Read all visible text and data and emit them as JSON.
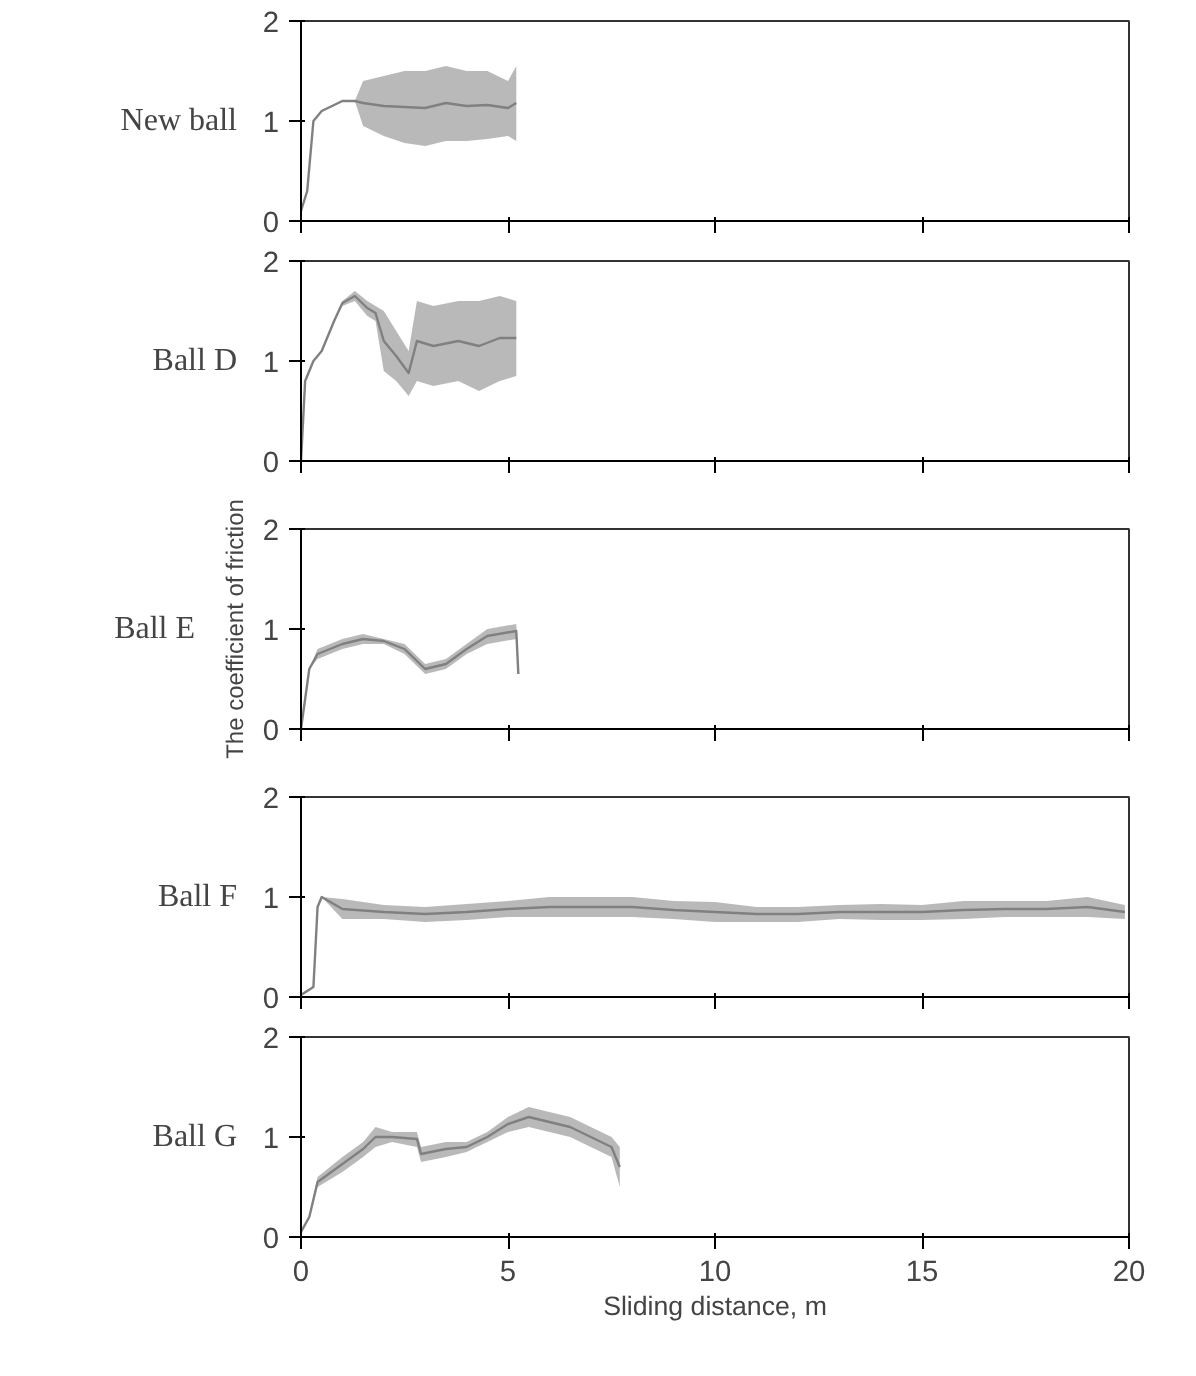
{
  "chart_data": [
    {
      "type": "line",
      "title": "New ball",
      "xlim": [
        0,
        20
      ],
      "xticks": [
        0,
        5,
        10,
        15,
        20
      ],
      "ylim": [
        0,
        2
      ],
      "yticks": [
        0,
        1,
        2
      ],
      "tick_labels": "y",
      "series": [
        {
          "color": "#808080",
          "x": [
            0,
            0.15,
            0.3,
            0.5,
            1.0,
            1.3,
            1.5,
            2.0,
            2.5,
            3.0,
            3.5,
            4.0,
            4.5,
            5.0,
            5.2
          ],
          "values": [
            0.1,
            0.3,
            1.0,
            1.1,
            1.2,
            1.2,
            1.18,
            1.15,
            1.14,
            1.13,
            1.18,
            1.15,
            1.16,
            1.13,
            1.18
          ],
          "lower": [
            0.1,
            0.3,
            1.0,
            1.1,
            1.2,
            1.2,
            0.95,
            0.85,
            0.78,
            0.75,
            0.8,
            0.8,
            0.82,
            0.85,
            0.8
          ],
          "upper": [
            0.1,
            0.3,
            1.0,
            1.1,
            1.2,
            1.2,
            1.4,
            1.45,
            1.5,
            1.5,
            1.55,
            1.5,
            1.5,
            1.4,
            1.55
          ]
        }
      ]
    },
    {
      "type": "line",
      "title": "Ball D",
      "xlim": [
        0,
        20
      ],
      "xticks": [
        0,
        5,
        10,
        15,
        20
      ],
      "ylim": [
        0,
        2
      ],
      "yticks": [
        0,
        1,
        2
      ],
      "tick_labels": "y",
      "series": [
        {
          "color": "#808080",
          "x": [
            0,
            0.1,
            0.3,
            0.5,
            0.8,
            1.0,
            1.3,
            1.6,
            1.8,
            2.0,
            2.3,
            2.6,
            2.8,
            3.2,
            3.8,
            4.3,
            4.8,
            5.2
          ],
          "values": [
            0,
            0.8,
            1.0,
            1.1,
            1.4,
            1.58,
            1.65,
            1.53,
            1.48,
            1.2,
            1.05,
            0.88,
            1.2,
            1.15,
            1.2,
            1.15,
            1.23,
            1.23
          ],
          "lower": [
            0,
            0.8,
            1.0,
            1.1,
            1.4,
            1.55,
            1.6,
            1.45,
            1.4,
            0.9,
            0.8,
            0.65,
            0.8,
            0.75,
            0.8,
            0.7,
            0.8,
            0.85
          ],
          "upper": [
            0,
            0.8,
            1.0,
            1.1,
            1.4,
            1.6,
            1.7,
            1.6,
            1.55,
            1.5,
            1.3,
            1.1,
            1.6,
            1.55,
            1.6,
            1.6,
            1.65,
            1.6
          ]
        }
      ]
    },
    {
      "type": "line",
      "title": "Ball E",
      "ylabel": "The coefficient of friction",
      "xlim": [
        0,
        20
      ],
      "xticks": [
        0,
        5,
        10,
        15,
        20
      ],
      "ylim": [
        0,
        2
      ],
      "yticks": [
        0,
        1,
        2
      ],
      "tick_labels": "y",
      "series": [
        {
          "color": "#808080",
          "x": [
            0,
            0.2,
            0.4,
            1.0,
            1.5,
            2.0,
            2.5,
            3.0,
            3.5,
            4.0,
            4.5,
            5.2,
            5.25
          ],
          "values": [
            0,
            0.6,
            0.75,
            0.85,
            0.9,
            0.88,
            0.8,
            0.6,
            0.65,
            0.8,
            0.93,
            0.98,
            0.55
          ],
          "lower": [
            0,
            0.6,
            0.7,
            0.8,
            0.85,
            0.85,
            0.75,
            0.55,
            0.6,
            0.75,
            0.85,
            0.9,
            0.55
          ],
          "upper": [
            0,
            0.6,
            0.8,
            0.9,
            0.95,
            0.9,
            0.85,
            0.65,
            0.7,
            0.85,
            1.0,
            1.05,
            0.55
          ]
        }
      ]
    },
    {
      "type": "line",
      "title": "Ball F",
      "xlim": [
        0,
        20
      ],
      "xticks": [
        0,
        5,
        10,
        15,
        20
      ],
      "ylim": [
        0,
        2
      ],
      "yticks": [
        0,
        1,
        2
      ],
      "tick_labels": "y",
      "series": [
        {
          "color": "#808080",
          "x": [
            0,
            0.3,
            0.4,
            0.5,
            1,
            2,
            3,
            4,
            5,
            6,
            7,
            8,
            9,
            10,
            11,
            12,
            13,
            14,
            15,
            16,
            17,
            18,
            19,
            19.9
          ],
          "values": [
            0.02,
            0.1,
            0.9,
            1.0,
            0.88,
            0.85,
            0.83,
            0.85,
            0.88,
            0.9,
            0.9,
            0.9,
            0.87,
            0.85,
            0.83,
            0.83,
            0.85,
            0.85,
            0.85,
            0.87,
            0.88,
            0.88,
            0.9,
            0.85
          ],
          "lower": [
            0.02,
            0.1,
            0.9,
            1.0,
            0.78,
            0.78,
            0.75,
            0.77,
            0.8,
            0.8,
            0.8,
            0.8,
            0.78,
            0.75,
            0.75,
            0.75,
            0.78,
            0.77,
            0.77,
            0.78,
            0.8,
            0.8,
            0.8,
            0.78
          ],
          "upper": [
            0.02,
            0.1,
            0.9,
            1.0,
            0.98,
            0.92,
            0.9,
            0.93,
            0.96,
            1.0,
            1.0,
            1.0,
            0.96,
            0.95,
            0.9,
            0.9,
            0.92,
            0.93,
            0.92,
            0.96,
            0.96,
            0.96,
            1.0,
            0.92
          ]
        }
      ]
    },
    {
      "type": "line",
      "title": "Ball G",
      "xlabel": "Sliding distance, m",
      "xlim": [
        0,
        20
      ],
      "xticks": [
        0,
        5,
        10,
        15,
        20
      ],
      "ylim": [
        0,
        2
      ],
      "yticks": [
        0,
        1,
        2
      ],
      "series": [
        {
          "color": "#808080",
          "x": [
            0,
            0.2,
            0.4,
            1.0,
            1.5,
            1.8,
            2.2,
            2.8,
            2.9,
            3.5,
            4.0,
            4.5,
            5.0,
            5.5,
            6.0,
            6.5,
            7.0,
            7.5,
            7.7
          ],
          "values": [
            0.05,
            0.2,
            0.55,
            0.73,
            0.88,
            1.0,
            1.0,
            0.98,
            0.83,
            0.88,
            0.9,
            1.0,
            1.13,
            1.2,
            1.15,
            1.1,
            1.0,
            0.9,
            0.7
          ],
          "lower": [
            0.05,
            0.2,
            0.5,
            0.65,
            0.8,
            0.9,
            0.95,
            0.9,
            0.75,
            0.8,
            0.85,
            0.95,
            1.05,
            1.1,
            1.05,
            1.0,
            0.9,
            0.8,
            0.5
          ],
          "upper": [
            0.05,
            0.2,
            0.6,
            0.8,
            0.95,
            1.1,
            1.05,
            1.05,
            0.9,
            0.95,
            0.95,
            1.05,
            1.2,
            1.3,
            1.25,
            1.2,
            1.1,
            1.0,
            0.9
          ]
        }
      ]
    }
  ]
}
